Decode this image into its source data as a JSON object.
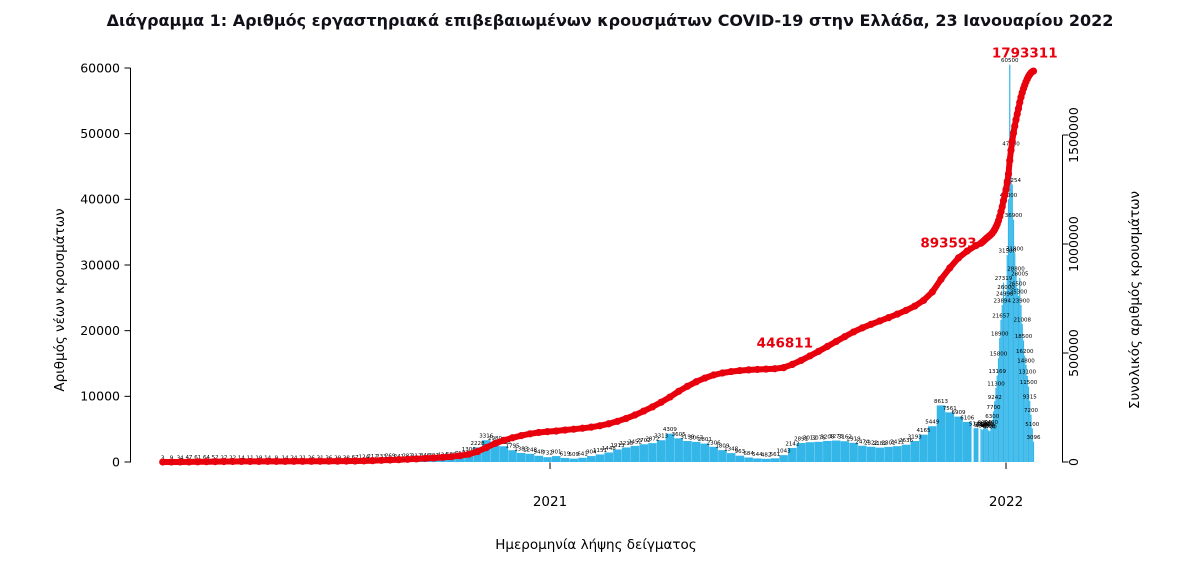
{
  "page": {
    "background": "#ffffff"
  },
  "chart_data": {
    "type": "combo-bar-line",
    "title": "Διάγραμμα 1: Αριθμός εργαστηριακά επιβεβαιωμένων κρουσμάτων COVID-19 στην Ελλάδα, 23 Ιανουαρίου 2022",
    "xlabel": "Ημερομηνία λήψης δείγματος",
    "ylabel_left": "Αριθμός νέων κρουσμάτων",
    "ylabel_right": "Συνολικός αριθμός κρουσμάτων",
    "title_color": "#101018",
    "bar_color": "#35b6e9",
    "line_color": "#e8000d",
    "bar_label_color": "#000000",
    "legend": "none",
    "grid": "off",
    "y_left": {
      "min": 0,
      "max": 60000,
      "ticks": [
        0,
        10000,
        20000,
        30000,
        40000,
        50000,
        60000
      ]
    },
    "y_right": {
      "min": 0,
      "max": 1500000,
      "ticks": [
        0,
        500000,
        1000000,
        1500000
      ]
    },
    "x_ticks": [
      {
        "label": "2021",
        "date": "2021-01-01"
      },
      {
        "label": "2022",
        "date": "2022-01-01"
      }
    ],
    "series_names": {
      "bars": "daily_new_cases",
      "line": "cumulative_cases"
    },
    "annotations": [
      {
        "text": "446811",
        "date": "2021-07-08",
        "y": 525000
      },
      {
        "text": "893593",
        "date": "2021-11-16",
        "y": 985000
      },
      {
        "text": "1793311",
        "date": "2022-01-16",
        "y": 1855000
      }
    ],
    "points": [
      [
        "2020-02-26",
        3,
        3
      ],
      [
        "2020-03-04",
        9,
        45
      ],
      [
        "2020-03-11",
        34,
        190
      ],
      [
        "2020-03-18",
        47,
        464
      ],
      [
        "2020-03-25",
        61,
        892
      ],
      [
        "2020-04-01",
        64,
        1415
      ],
      [
        "2020-04-08",
        52,
        1884
      ],
      [
        "2020-04-15",
        27,
        2207
      ],
      [
        "2020-04-22",
        22,
        2401
      ],
      [
        "2020-04-29",
        14,
        2576
      ],
      [
        "2020-05-06",
        11,
        2663
      ],
      [
        "2020-05-13",
        19,
        2760
      ],
      [
        "2020-05-20",
        14,
        2840
      ],
      [
        "2020-05-27",
        9,
        2906
      ],
      [
        "2020-06-03",
        14,
        2980
      ],
      [
        "2020-06-10",
        24,
        3058
      ],
      [
        "2020-06-17",
        21,
        3163
      ],
      [
        "2020-06-24",
        26,
        3310
      ],
      [
        "2020-07-01",
        31,
        3459
      ],
      [
        "2020-07-08",
        36,
        3678
      ],
      [
        "2020-07-15",
        29,
        3910
      ],
      [
        "2020-07-22",
        38,
        4134
      ],
      [
        "2020-07-29",
        67,
        4478
      ],
      [
        "2020-08-05",
        124,
        5123
      ],
      [
        "2020-08-12",
        212,
        6177
      ],
      [
        "2020-08-19",
        233,
        7684
      ],
      [
        "2020-08-26",
        269,
        9280
      ],
      [
        "2020-09-02",
        241,
        10757
      ],
      [
        "2020-09-09",
        283,
        12424
      ],
      [
        "2020-09-16",
        312,
        14246
      ],
      [
        "2020-09-23",
        346,
        16286
      ],
      [
        "2020-09-30",
        391,
        18475
      ],
      [
        "2020-10-07",
        424,
        21152
      ],
      [
        "2020-10-14",
        508,
        24450
      ],
      [
        "2020-10-21",
        717,
        28678
      ],
      [
        "2020-10-28",
        1306,
        35510
      ],
      [
        "2020-11-04",
        2228,
        48002
      ],
      [
        "2020-11-11",
        3316,
        66102
      ],
      [
        "2020-11-18",
        2980,
        85261
      ],
      [
        "2020-11-25",
        2398,
        99306
      ],
      [
        "2020-12-02",
        1795,
        111208
      ],
      [
        "2020-12-09",
        1383,
        120964
      ],
      [
        "2020-12-16",
        1248,
        129405
      ],
      [
        "2020-12-23",
        948,
        135456
      ],
      [
        "2020-12-30",
        732,
        139447
      ],
      [
        "2021-01-06",
        901,
        142086
      ],
      [
        "2021-01-13",
        619,
        146589
      ],
      [
        "2021-01-20",
        509,
        150575
      ],
      [
        "2021-01-27",
        641,
        154796
      ],
      [
        "2021-02-03",
        904,
        159806
      ],
      [
        "2021-02-10",
        1151,
        166434
      ],
      [
        "2021-02-17",
        1448,
        175343
      ],
      [
        "2021-02-24",
        1913,
        186469
      ],
      [
        "2021-03-03",
        2215,
        199902
      ],
      [
        "2021-03-10",
        2452,
        215558
      ],
      [
        "2021-03-17",
        2702,
        233570
      ],
      [
        "2021-03-24",
        2872,
        252711
      ],
      [
        "2021-03-31",
        3313,
        274205
      ],
      [
        "2021-04-07",
        4309,
        297858
      ],
      [
        "2021-04-14",
        3605,
        324184
      ],
      [
        "2021-04-21",
        3199,
        347127
      ],
      [
        "2021-04-28",
        3067,
        368031
      ],
      [
        "2021-05-05",
        2801,
        385118
      ],
      [
        "2021-05-12",
        2306,
        399012
      ],
      [
        "2021-05-19",
        1809,
        408297
      ],
      [
        "2021-05-26",
        1348,
        414852
      ],
      [
        "2021-06-02",
        963,
        419431
      ],
      [
        "2021-06-09",
        684,
        422513
      ],
      [
        "2021-06-16",
        544,
        424538
      ],
      [
        "2021-06-23",
        482,
        426085
      ],
      [
        "2021-06-30",
        561,
        427873
      ],
      [
        "2021-07-07",
        1043,
        432825
      ],
      [
        "2021-07-14",
        2142,
        447662
      ],
      [
        "2021-07-21",
        2891,
        465899
      ],
      [
        "2021-07-28",
        3012,
        486543
      ],
      [
        "2021-08-04",
        3076,
        507815
      ],
      [
        "2021-08-11",
        3208,
        529872
      ],
      [
        "2021-08-18",
        3273,
        552545
      ],
      [
        "2021-08-25",
        3162,
        575190
      ],
      [
        "2021-09-01",
        2919,
        596634
      ],
      [
        "2021-09-08",
        2474,
        615191
      ],
      [
        "2021-09-15",
        2322,
        631622
      ],
      [
        "2021-09-22",
        2189,
        646980
      ],
      [
        "2021-09-29",
        2301,
        662188
      ],
      [
        "2021-10-06",
        2411,
        678309
      ],
      [
        "2021-10-13",
        2636,
        695522
      ],
      [
        "2021-10-20",
        3193,
        715293
      ],
      [
        "2021-10-27",
        4165,
        741198
      ],
      [
        "2021-11-03",
        5449,
        779857
      ],
      [
        "2021-11-10",
        8613,
        838020
      ],
      [
        "2021-11-17",
        7561,
        890358
      ],
      [
        "2021-11-24",
        6909,
        936217
      ],
      [
        "2021-12-01",
        6106,
        968046
      ],
      [
        "2021-12-08",
        5144,
        993017
      ],
      [
        "2021-12-12",
        5046,
        1003554
      ],
      [
        "2021-12-13",
        4900,
        1008454
      ],
      [
        "2021-12-14",
        5100,
        1013554
      ],
      [
        "2021-12-15",
        5300,
        1018854
      ],
      [
        "2021-12-16",
        5200,
        1024054
      ],
      [
        "2021-12-17",
        5000,
        1029054
      ],
      [
        "2021-12-18",
        4800,
        1033854
      ],
      [
        "2021-12-19",
        4700,
        1038554
      ],
      [
        "2021-12-20",
        5400,
        1043954
      ],
      [
        "2021-12-21",
        6300,
        1050254
      ],
      [
        "2021-12-22",
        7700,
        1057954
      ],
      [
        "2021-12-23",
        9242,
        1067196
      ],
      [
        "2021-12-24",
        11300,
        1078496
      ],
      [
        "2021-12-25",
        13169,
        1091665
      ],
      [
        "2021-12-26",
        15800,
        1107465
      ],
      [
        "2021-12-27",
        18900,
        1126365
      ],
      [
        "2021-12-28",
        21657,
        1148022
      ],
      [
        "2021-12-29",
        23894,
        1171916
      ],
      [
        "2021-12-30",
        27319,
        1199235
      ],
      [
        "2021-12-31",
        24998,
        1224233
      ],
      [
        "2022-01-01",
        26000,
        1250233
      ],
      [
        "2022-01-02",
        31500,
        1281733
      ],
      [
        "2022-01-03",
        40000,
        1321733
      ],
      [
        "2022-01-04",
        60500,
        1382233
      ],
      [
        "2022-01-05",
        47800,
        1430033
      ],
      [
        "2022-01-06",
        42254,
        1472287
      ],
      [
        "2022-01-07",
        36900,
        1509187
      ],
      [
        "2022-01-08",
        31800,
        1540987
      ],
      [
        "2022-01-09",
        28800,
        1569787
      ],
      [
        "2022-01-10",
        26500,
        1596287
      ],
      [
        "2022-01-11",
        25300,
        1621587
      ],
      [
        "2022-01-12",
        28005,
        1649592
      ],
      [
        "2022-01-13",
        23900,
        1673492
      ],
      [
        "2022-01-14",
        21008,
        1694500
      ],
      [
        "2022-01-15",
        18500,
        1713000
      ],
      [
        "2022-01-16",
        16200,
        1729200
      ],
      [
        "2022-01-17",
        14800,
        1744000
      ],
      [
        "2022-01-18",
        13100,
        1757100
      ],
      [
        "2022-01-19",
        11500,
        1768600
      ],
      [
        "2022-01-20",
        9315,
        1777915
      ],
      [
        "2022-01-21",
        7200,
        1785115
      ],
      [
        "2022-01-22",
        5100,
        1790215
      ],
      [
        "2022-01-23",
        3096,
        1793311
      ]
    ]
  }
}
